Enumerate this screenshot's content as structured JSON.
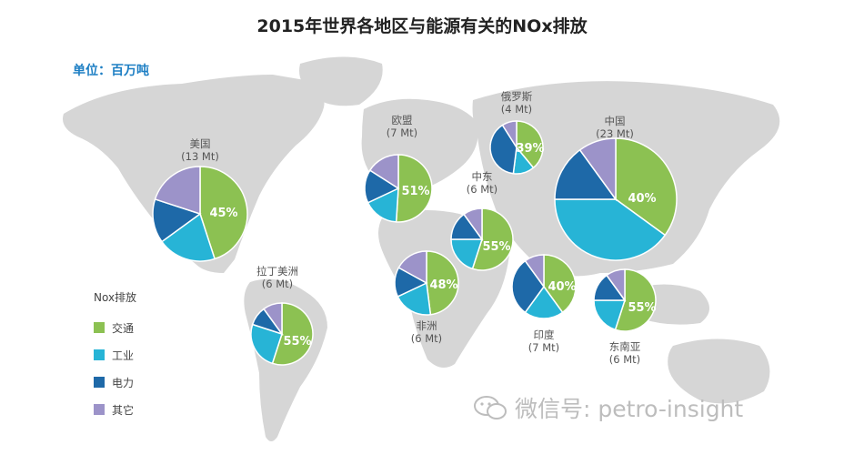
{
  "title": "2015年世界各地区与能源有关的NOx排放",
  "unit_label": "单位：百万吨",
  "colors": {
    "transport": "#8cc152",
    "industry": "#27b4d6",
    "power": "#1e69a8",
    "other": "#9c93c9",
    "map": "#d6d6d6"
  },
  "legend": {
    "title": "Nox排放",
    "items": [
      {
        "label": "交通",
        "color": "#8cc152"
      },
      {
        "label": "工业",
        "color": "#27b4d6"
      },
      {
        "label": "电力",
        "color": "#1e69a8"
      },
      {
        "label": "其它",
        "color": "#9c93c9"
      }
    ]
  },
  "watermark": "微信号: petro-insight",
  "chart_data": {
    "type": "pie",
    "title": "2015年世界各地区与能源有关的NOx排放",
    "unit": "百万吨",
    "categories": [
      "交通",
      "工业",
      "电力",
      "其它"
    ],
    "series": [
      {
        "name": "美国",
        "total_label": "(13 Mt)",
        "values": [
          45,
          20,
          15,
          20
        ],
        "shown_pct": "45%",
        "shown_index": 0
      },
      {
        "name": "欧盟",
        "total_label": "(7 Mt)",
        "values": [
          51,
          17,
          16,
          16
        ],
        "shown_pct": "51%",
        "shown_index": 0
      },
      {
        "name": "俄罗斯",
        "total_label": "(4 Mt)",
        "values": [
          39,
          13,
          39,
          9
        ],
        "shown_pct": "39%",
        "shown_index": 2
      },
      {
        "name": "中国",
        "total_label": "(23 Mt)",
        "values": [
          35,
          40,
          15,
          10
        ],
        "shown_pct": "40%",
        "shown_index": 1
      },
      {
        "name": "中东",
        "total_label": "(6 Mt)",
        "values": [
          55,
          20,
          15,
          10
        ],
        "shown_pct": "55%",
        "shown_index": 0
      },
      {
        "name": "非洲",
        "total_label": "(6 Mt)",
        "values": [
          48,
          20,
          15,
          17
        ],
        "shown_pct": "48%",
        "shown_index": 0
      },
      {
        "name": "印度",
        "total_label": "(7 Mt)",
        "values": [
          40,
          20,
          30,
          10
        ],
        "shown_pct": "40%",
        "shown_index": 0
      },
      {
        "name": "东南亚",
        "total_label": "(6 Mt)",
        "values": [
          55,
          20,
          15,
          10
        ],
        "shown_pct": "55%",
        "shown_index": 0
      },
      {
        "name": "拉丁美洲",
        "total_label": "(6 Mt)",
        "values": [
          55,
          25,
          10,
          10
        ],
        "shown_pct": "55%",
        "shown_index": 0
      }
    ]
  }
}
